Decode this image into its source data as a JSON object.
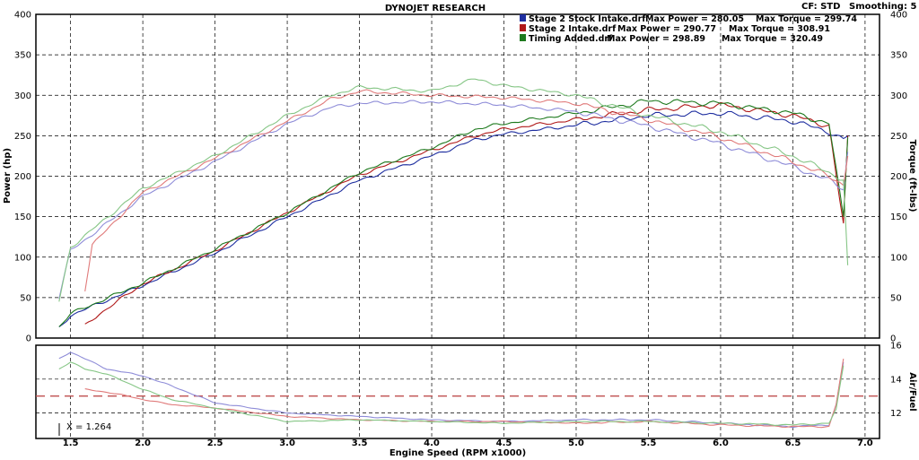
{
  "header": {
    "title": "DYNOJET RESEARCH",
    "cf_label": "CF: STD",
    "smoothing_label": "Smoothing: 5"
  },
  "legend": [
    {
      "file": "Stage 2 Stock Intake.drf",
      "max_power_label": "Max Power = 280.05",
      "max_torque_label": "Max Torque = 299.74",
      "color": "#1f2fa0"
    },
    {
      "file": "Stage 2 Intake.drf",
      "max_power_label": "Max Power = 290.77",
      "max_torque_label": "Max Torque = 308.91",
      "color": "#b01818"
    },
    {
      "file": "Timing Added.drf",
      "max_power_label": "Max Power = 298.89",
      "max_torque_label": "Max Torque = 320.49",
      "color": "#1e7a1e"
    }
  ],
  "cursor_label": "X = 1.264",
  "chart_data": [
    {
      "type": "line",
      "name": "power-torque",
      "xlabel": "Engine Speed (RPM x1000)",
      "ylabel": "Power (hp)",
      "y2label": "Torque (ft-lbs)",
      "xlim": [
        1.26,
        7.1
      ],
      "ylim": [
        0,
        400
      ],
      "y2lim": [
        0,
        400
      ],
      "xticks": [
        "1.5",
        "2.0",
        "2.5",
        "3.0",
        "3.5",
        "4.0",
        "4.5",
        "5.0",
        "5.5",
        "6.0",
        "6.5",
        "7.0"
      ],
      "yticks": [
        "0",
        "50",
        "100",
        "150",
        "200",
        "250",
        "300",
        "350",
        "400"
      ],
      "y2ticks": [
        "0",
        "50",
        "100",
        "150",
        "200",
        "250",
        "300",
        "350",
        "400"
      ],
      "grid": true,
      "legend_position": "top-right",
      "series": [
        {
          "name": "Stage 2 Stock Intake.drf",
          "measure": "power",
          "color": "#1f2fa0",
          "x": [
            1.42,
            1.5,
            2.0,
            2.5,
            3.0,
            3.5,
            4.0,
            4.3,
            4.5,
            5.0,
            5.5,
            6.0,
            6.5,
            6.75,
            6.85,
            6.88
          ],
          "y": [
            12,
            28,
            65,
            105,
            150,
            195,
            225,
            245,
            252,
            263,
            275,
            278,
            268,
            255,
            245,
            250
          ]
        },
        {
          "name": "Stage 2 Intake.drf",
          "measure": "power",
          "color": "#b01818",
          "x": [
            1.6,
            1.7,
            2.0,
            2.5,
            3.0,
            3.5,
            4.0,
            4.3,
            4.5,
            5.0,
            5.5,
            6.0,
            6.5,
            6.75,
            6.85,
            6.88
          ],
          "y": [
            15,
            30,
            67,
            108,
            155,
            202,
            232,
            250,
            258,
            270,
            282,
            288,
            275,
            262,
            140,
            250
          ]
        },
        {
          "name": "Timing Added.drf",
          "measure": "power",
          "color": "#1e7a1e",
          "x": [
            1.42,
            1.5,
            2.0,
            2.5,
            3.0,
            3.5,
            4.0,
            4.3,
            4.5,
            5.0,
            5.5,
            6.0,
            6.5,
            6.75,
            6.85,
            6.88
          ],
          "y": [
            14,
            30,
            68,
            110,
            155,
            205,
            235,
            258,
            265,
            278,
            293,
            290,
            278,
            265,
            150,
            248
          ]
        },
        {
          "name": "Stage 2 Stock Intake.drf",
          "measure": "torque",
          "color": "#8e8cd8",
          "x": [
            1.42,
            1.5,
            2.0,
            2.5,
            3.0,
            3.3,
            3.5,
            4.0,
            4.5,
            5.0,
            5.5,
            6.0,
            6.5,
            6.75,
            6.85,
            6.88
          ],
          "y": [
            50,
            108,
            175,
            218,
            265,
            285,
            290,
            292,
            288,
            280,
            262,
            240,
            212,
            195,
            185,
            230
          ]
        },
        {
          "name": "Stage 2 Intake.drf",
          "measure": "torque",
          "color": "#e07a7a",
          "x": [
            1.6,
            1.65,
            2.0,
            2.5,
            3.0,
            3.3,
            3.5,
            4.0,
            4.5,
            5.0,
            5.5,
            6.0,
            6.5,
            6.75,
            6.85,
            6.88
          ],
          "y": [
            60,
            115,
            180,
            222,
            268,
            295,
            305,
            300,
            297,
            290,
            270,
            248,
            218,
            200,
            190,
            225
          ]
        },
        {
          "name": "Timing Added.drf",
          "measure": "torque",
          "color": "#86c686",
          "x": [
            1.42,
            1.5,
            2.0,
            2.5,
            3.0,
            3.3,
            3.5,
            4.0,
            4.3,
            4.5,
            5.0,
            5.5,
            6.0,
            6.5,
            6.75,
            6.85,
            6.88
          ],
          "y": [
            45,
            112,
            185,
            225,
            275,
            300,
            310,
            305,
            320,
            312,
            300,
            275,
            255,
            225,
            205,
            195,
            90
          ]
        }
      ]
    },
    {
      "type": "line",
      "name": "air-fuel",
      "xlabel": "Engine Speed (RPM x1000)",
      "ylabel": "Air/Fuel",
      "xlim": [
        1.26,
        7.1
      ],
      "ylim": [
        10.5,
        16
      ],
      "yticks": [
        "12",
        "14",
        "16"
      ],
      "reference_line": 13.0,
      "grid": true,
      "series": [
        {
          "name": "Stage 2 Stock Intake.drf",
          "color": "#8e8cd8",
          "x": [
            1.42,
            1.5,
            1.6,
            1.75,
            2.0,
            2.2,
            2.5,
            3.0,
            3.5,
            4.0,
            4.5,
            5.0,
            5.5,
            6.0,
            6.5,
            6.75,
            6.8,
            6.85
          ],
          "y": [
            15.2,
            15.6,
            15.2,
            14.6,
            14.2,
            13.6,
            12.6,
            12.0,
            11.8,
            11.6,
            11.5,
            11.6,
            11.6,
            11.4,
            11.2,
            11.3,
            12.5,
            15.0
          ]
        },
        {
          "name": "Stage 2 Intake.drf",
          "color": "#e07a7a",
          "x": [
            1.6,
            1.7,
            1.9,
            2.0,
            2.2,
            2.5,
            3.0,
            3.5,
            4.0,
            4.5,
            5.0,
            5.5,
            6.0,
            6.5,
            6.75,
            6.8,
            6.85
          ],
          "y": [
            13.4,
            13.3,
            13.0,
            12.8,
            12.5,
            12.3,
            11.8,
            11.6,
            11.5,
            11.5,
            11.4,
            11.5,
            11.3,
            11.2,
            11.2,
            12.5,
            15.2
          ]
        },
        {
          "name": "Timing Added.drf",
          "color": "#86c686",
          "x": [
            1.42,
            1.5,
            1.6,
            1.75,
            2.0,
            2.2,
            2.5,
            3.0,
            3.5,
            4.0,
            4.5,
            5.0,
            5.5,
            6.0,
            6.5,
            6.75,
            6.8,
            6.85
          ],
          "y": [
            14.6,
            15.0,
            14.6,
            14.3,
            13.4,
            12.8,
            12.3,
            11.5,
            11.6,
            11.5,
            11.4,
            11.5,
            11.5,
            11.4,
            11.3,
            11.4,
            12.2,
            14.8
          ]
        }
      ]
    }
  ]
}
